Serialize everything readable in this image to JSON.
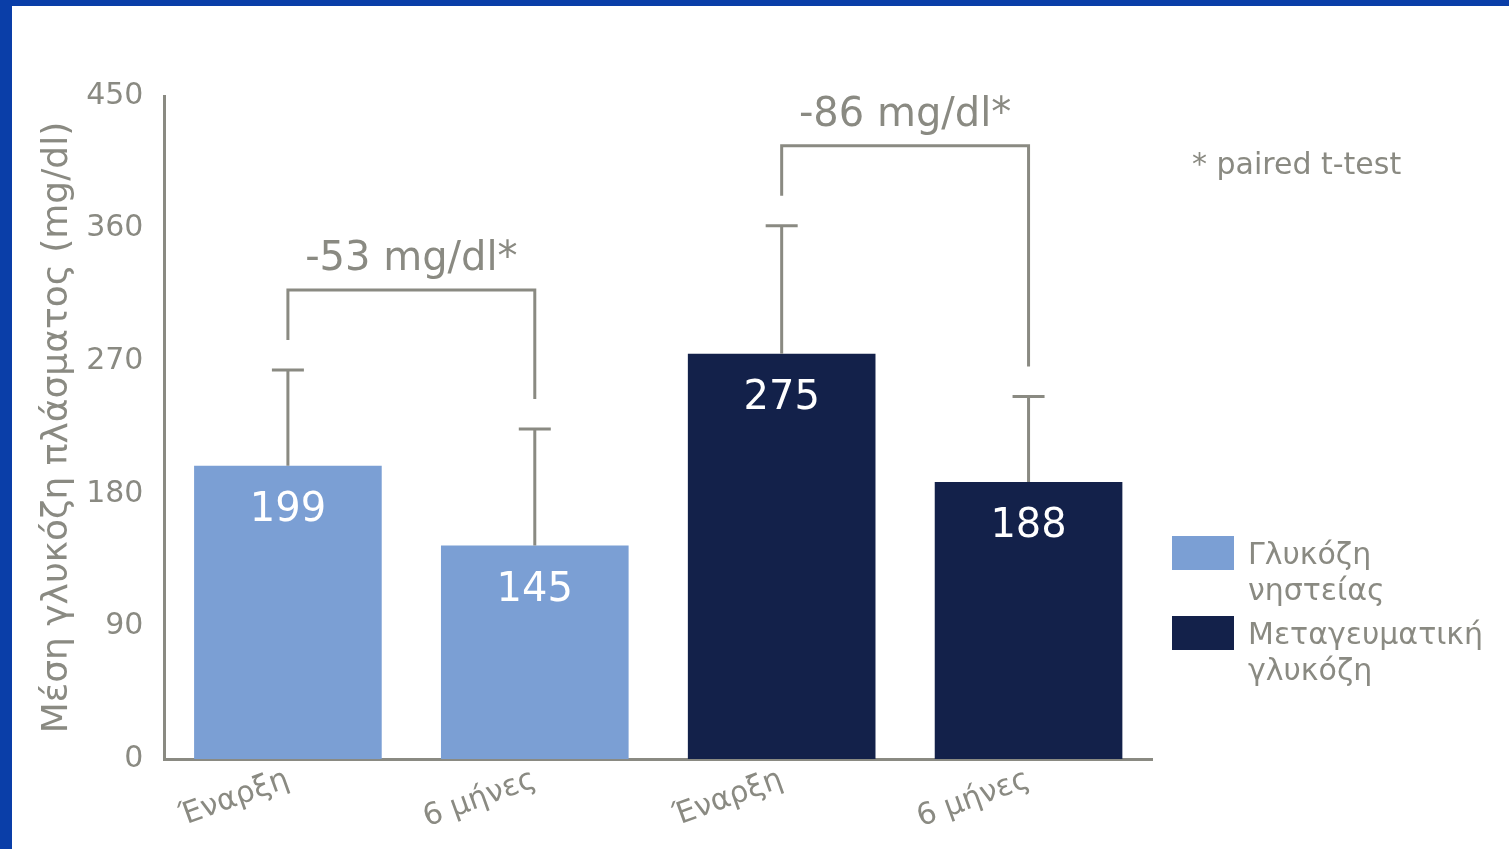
{
  "chart_data": {
    "type": "bar",
    "ylabel": "Μέση γλυκόζη πλάσματος (mg/dl)",
    "categories": [
      "Έναρξη",
      "6 μήνες",
      "Έναρξη",
      "6 μήνες"
    ],
    "series": [
      {
        "name": "Γλυκόζη νηστείας",
        "color": "#7b9fd4",
        "values": [
          199,
          145,
          null,
          null
        ],
        "errors": [
          [
            199,
            264
          ],
          [
            145,
            224
          ],
          null,
          null
        ]
      },
      {
        "name": "Μεταγευματική γλυκόζη",
        "color": "#13214a",
        "values": [
          null,
          null,
          275,
          188
        ],
        "errors": [
          null,
          null,
          [
            275,
            362
          ],
          [
            188,
            246
          ]
        ]
      }
    ],
    "ylim": [
      0,
      450
    ],
    "yticks": [
      0,
      90,
      180,
      270,
      360,
      450
    ],
    "grid": false,
    "legend": "right",
    "data_labels": true,
    "annotations": [
      "-53 mg/dl*",
      "-86 mg/dl*",
      "* paired t-test"
    ]
  }
}
